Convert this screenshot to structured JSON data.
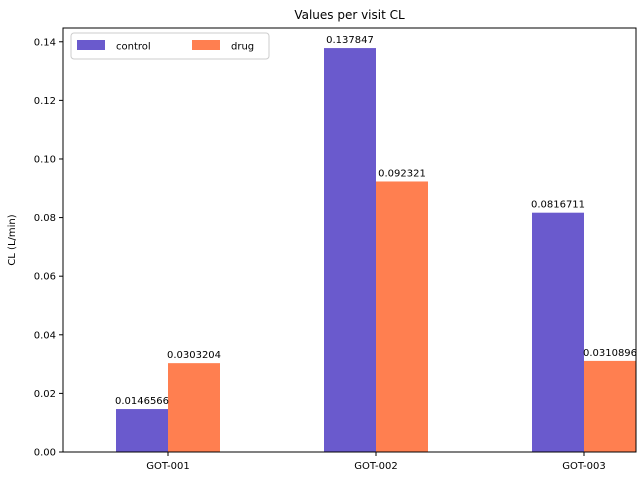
{
  "chart_data": {
    "type": "bar",
    "title": "Values per visit CL",
    "xlabel": "",
    "ylabel": "CL (L/min)",
    "categories": [
      "GOT-001",
      "GOT-002",
      "GOT-003"
    ],
    "series": [
      {
        "name": "control",
        "color": "#6a5acd",
        "values": [
          0.0146566,
          0.137847,
          0.0816711
        ],
        "labels": [
          "0.0146566",
          "0.137847",
          "0.0816711"
        ]
      },
      {
        "name": "drug",
        "color": "#ff7f50",
        "values": [
          0.0303204,
          0.092321,
          0.0310896
        ],
        "labels": [
          "0.0303204",
          "0.092321",
          "0.0310896"
        ]
      }
    ],
    "ylim": [
      0,
      0.1447
    ],
    "yticks": [
      0,
      0.02,
      0.04,
      0.06,
      0.08,
      0.1,
      0.12,
      0.14
    ],
    "ytick_labels": [
      "0.00",
      "0.02",
      "0.04",
      "0.06",
      "0.08",
      "0.10",
      "0.12",
      "0.14"
    ],
    "legend": {
      "placement": "top-left",
      "columns": 2
    },
    "grid": false
  }
}
